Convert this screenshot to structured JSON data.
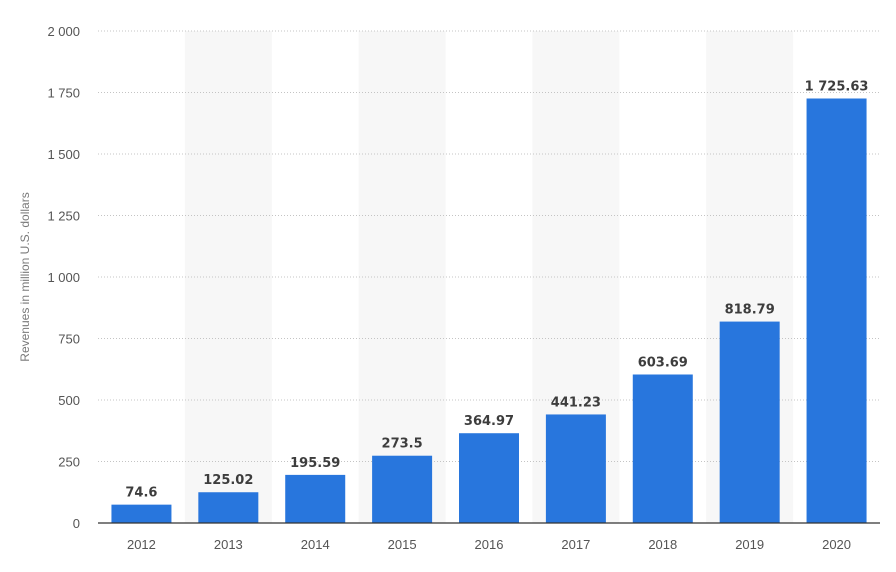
{
  "chart_data": {
    "type": "bar",
    "categories": [
      "2012",
      "2013",
      "2014",
      "2015",
      "2016",
      "2017",
      "2018",
      "2019",
      "2020"
    ],
    "values": [
      74.6,
      125.02,
      195.59,
      273.5,
      364.97,
      441.23,
      603.69,
      818.79,
      1725.63
    ],
    "value_labels": [
      "74.6",
      "125.02",
      "195.59",
      "273.5",
      "364.97",
      "441.23",
      "603.69",
      "818.79",
      "1 725.63"
    ],
    "xlabel": "",
    "ylabel": "Revenues in million U.S. dollars",
    "ylim": [
      0,
      2000
    ],
    "yticks": [
      0,
      250,
      500,
      750,
      1000,
      1250,
      1500,
      1750,
      2000
    ],
    "ytick_labels": [
      "0",
      "250",
      "500",
      "750",
      "1 000",
      "1 250",
      "1 500",
      "1 750",
      "2 000"
    ],
    "grid": true,
    "bar_color": "#2876dd",
    "band_color": "#f7f7f7"
  }
}
